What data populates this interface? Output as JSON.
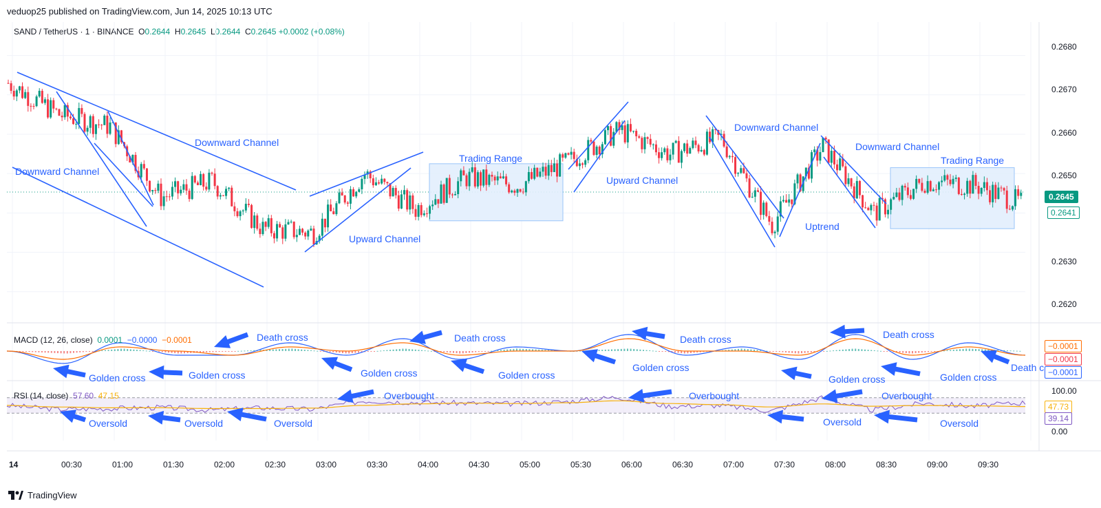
{
  "header": {
    "published": "veduop25 published on TradingView.com, Jun 14, 2025 10:13 UTC"
  },
  "symbol": {
    "title": "SAND / TetherUS · 1 · BINANCE",
    "o_label": "O",
    "o": "0.2644",
    "h_label": "H",
    "h": "0.2645",
    "l_label": "L",
    "l": "0.2644",
    "c_label": "C",
    "c": "0.2645",
    "change": "+0.0002 (+0.08%)"
  },
  "colors": {
    "up": "#089981",
    "down": "#f23645",
    "accent": "#2962ff",
    "macd_line": "#2962ff",
    "signal_line": "#ff6d00",
    "rsi_line": "#7e57c2",
    "rsi_ma": "#f7b10a",
    "range_fill": "#e3effd"
  },
  "price_axis": {
    "ticks": [
      "0.2680",
      "0.2670",
      "0.2660",
      "0.2650",
      "0.2630",
      "0.2620"
    ],
    "current_price": "0.2645",
    "secondary_price": "0.2641"
  },
  "time_axis": {
    "ticks": [
      "14",
      "00:30",
      "01:00",
      "01:30",
      "02:00",
      "02:30",
      "03:00",
      "03:30",
      "04:00",
      "04:30",
      "05:00",
      "05:30",
      "06:00",
      "06:30",
      "07:00",
      "07:30",
      "08:00",
      "08:30",
      "09:00",
      "09:30"
    ]
  },
  "macd": {
    "title": "MACD (12, 26, close)",
    "v1": "0.0001",
    "v2": "−0.0000",
    "v3": "−0.0001",
    "tags": [
      "−0.0001",
      "−0.0001",
      "−0.0001"
    ]
  },
  "rsi": {
    "title": "RSI (14, close)",
    "v1": "57.60",
    "v2": "47.15",
    "axis": [
      "100.00",
      "0.00"
    ],
    "tags": [
      "47.73",
      "39.14"
    ]
  },
  "annotations": {
    "downward_channel_1": "Downward Channel",
    "downward_channel_2": "Downward Channel",
    "downward_channel_3": "Downward Channel",
    "downward_channel_4": "Downward Channel",
    "upward_channel_1": "Upward Channel",
    "upward_channel_2": "Upward Channel",
    "trading_range_1": "Trading Range",
    "trading_range_2": "Trading Range",
    "uptrend": "Uptrend",
    "death_cross": "Death cross",
    "death_cross_cut": "Death c",
    "golden_cross": "Golden cross",
    "overbought": "Overbought",
    "oversold": "Oversold"
  },
  "footer": {
    "brand": "TradingView"
  },
  "chart_data": [
    {
      "type": "candlestick",
      "title": "SAND / TetherUS · 1 · BINANCE",
      "ylim": [
        0.2614,
        0.2685
      ],
      "grid": true,
      "x": [
        "23:50",
        "00:20",
        "00:50",
        "01:20",
        "01:50",
        "02:20",
        "02:50",
        "03:20",
        "03:50",
        "04:20",
        "04:50",
        "05:20",
        "05:50",
        "06:20",
        "06:50",
        "07:20",
        "07:50",
        "08:20",
        "08:50",
        "09:20",
        "09:50"
      ],
      "close": [
        0.2673,
        0.2665,
        0.2662,
        0.2644,
        0.2648,
        0.2636,
        0.2635,
        0.265,
        0.2641,
        0.2649,
        0.2647,
        0.2653,
        0.2661,
        0.2655,
        0.2659,
        0.2637,
        0.2657,
        0.264,
        0.2648,
        0.2647,
        0.2642
      ]
    },
    {
      "type": "line",
      "title": "MACD (12, 26, close)",
      "series": [
        {
          "name": "MACD",
          "values": [
            0.0,
            -0.0003,
            0.0002,
            -0.0001,
            -0.0001,
            0.0002,
            -0.0001,
            0.0003,
            -0.0002,
            0.0001,
            0.0,
            0.0004,
            -0.0001,
            0.0001,
            -0.0002,
            0.0004,
            -0.0002,
            0.0002,
            -0.0001
          ]
        },
        {
          "name": "Signal",
          "values": [
            0.0,
            -0.0002,
            0.0001,
            0.0,
            -0.0001,
            0.0001,
            0.0,
            0.0002,
            -0.0001,
            0.0,
            0.0,
            0.0003,
            0.0,
            0.0,
            -0.0001,
            0.0003,
            -0.0001,
            0.0001,
            -0.0001
          ]
        }
      ]
    },
    {
      "type": "line",
      "title": "RSI (14, close)",
      "ylim": [
        0,
        100
      ],
      "series": [
        {
          "name": "RSI",
          "values": [
            50,
            40,
            42,
            45,
            38,
            44,
            40,
            62,
            58,
            56,
            54,
            60,
            72,
            48,
            50,
            36,
            70,
            38,
            56,
            48,
            57.6
          ]
        },
        {
          "name": "RSI-based MA",
          "values": [
            50,
            46,
            44,
            44,
            42,
            42,
            43,
            50,
            54,
            56,
            55,
            57,
            62,
            55,
            52,
            46,
            54,
            48,
            50,
            49,
            47.15
          ]
        }
      ]
    }
  ]
}
